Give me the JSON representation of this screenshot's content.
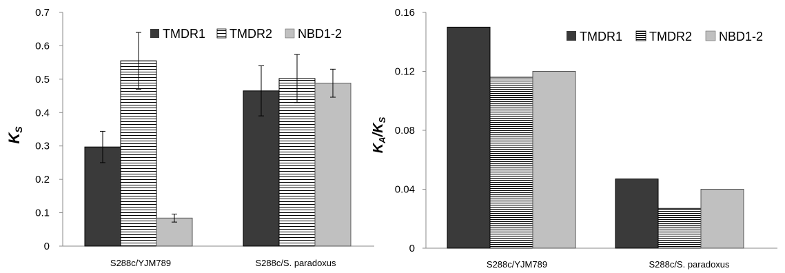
{
  "chart_data": [
    {
      "type": "bar",
      "categories": [
        "S288c/YJM789",
        "S288c/S. paradoxus"
      ],
      "series": [
        {
          "name": "TMDR1",
          "values": [
            0.297,
            0.465
          ],
          "errors": [
            0.047,
            0.075
          ]
        },
        {
          "name": "TMDR2",
          "values": [
            0.555,
            0.502
          ],
          "errors": [
            0.085,
            0.072
          ]
        },
        {
          "name": "NBD1-2",
          "values": [
            0.084,
            0.488
          ],
          "errors": [
            0.012,
            0.042
          ]
        }
      ],
      "ylabel_main": "K",
      "ylabel_sub": "S",
      "ylim": [
        0,
        0.7
      ],
      "yticks": [
        "0",
        "0.1",
        "0.2",
        "0.3",
        "0.4",
        "0.5",
        "0.6",
        "0.7"
      ],
      "legend_position": "top-right"
    },
    {
      "type": "bar",
      "categories": [
        "S288c/YJM789",
        "S288c/S. paradoxus"
      ],
      "series": [
        {
          "name": "TMDR1",
          "values": [
            0.15,
            0.047
          ]
        },
        {
          "name": "TMDR2",
          "values": [
            0.116,
            0.027
          ]
        },
        {
          "name": "NBD1-2",
          "values": [
            0.12,
            0.04
          ]
        }
      ],
      "ylabel_main_a": "K",
      "ylabel_sub_a": "A",
      "ylabel_sep": "/",
      "ylabel_main_b": "K",
      "ylabel_sub_b": "S",
      "ylim": [
        0,
        0.16
      ],
      "yticks": [
        "0",
        "0.04",
        "0.08",
        "0.12",
        "0.16"
      ],
      "legend_position": "top-right"
    }
  ],
  "styles": {
    "TMDR1": "#3a3a3a",
    "TMDR2": "hatch",
    "NBD1-2": "#c0c0c0"
  }
}
